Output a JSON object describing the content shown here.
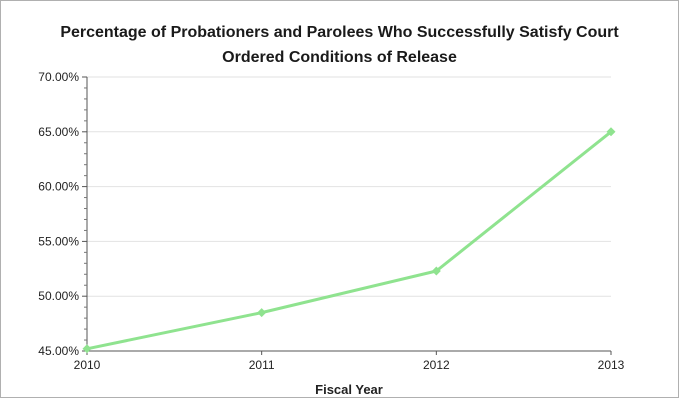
{
  "chart_data": {
    "type": "line",
    "title_line1": "Percentage of Probationers and Parolees Who Successfully Satisfy Court",
    "title_line2": "Ordered Conditions of Release",
    "xlabel": "Fiscal Year",
    "ylabel": "",
    "categories": [
      "2010",
      "2011",
      "2012",
      "2013"
    ],
    "y_ticks": [
      "45.00%",
      "50.00%",
      "55.00%",
      "60.00%",
      "65.00%",
      "70.00%"
    ],
    "ylim": [
      45,
      70
    ],
    "grid": true,
    "legend": "none",
    "series": [
      {
        "values": [
          45.2,
          48.5,
          52.3,
          65.0
        ],
        "color": "#8fe38f"
      }
    ]
  }
}
